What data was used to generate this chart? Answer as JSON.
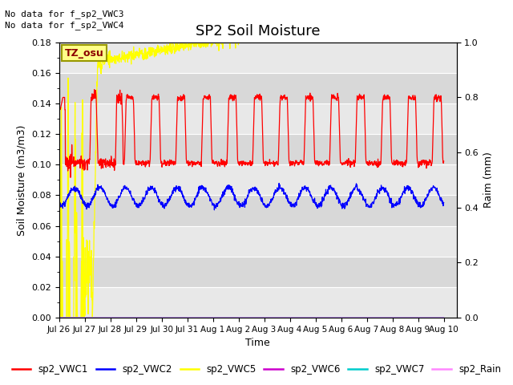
{
  "title": "SP2 Soil Moisture",
  "ylabel_left": "Soil Moisture (m3/m3)",
  "ylabel_right": "Raim (mm)",
  "xlabel": "Time",
  "note1": "No data for f_sp2_VWC3",
  "note2": "No data for f_sp2_VWC4",
  "tz_label": "TZ_osu",
  "ylim_left": [
    0.0,
    0.18
  ],
  "ylim_right": [
    0.0,
    1.0
  ],
  "background_color": "#ffffff",
  "plot_bg_color": "#d8d8d8",
  "stripe_color": "#e8e8e8",
  "tick_dates": [
    "Jul 26",
    "Jul 27",
    "Jul 28",
    "Jul 29",
    "Jul 30",
    "Jul 31",
    "Aug 1",
    "Aug 2",
    "Aug 3",
    "Aug 4",
    "Aug 5",
    "Aug 6",
    "Aug 7",
    "Aug 8",
    "Aug 9",
    "Aug 10"
  ],
  "tick_positions": [
    0,
    1,
    2,
    3,
    4,
    5,
    6,
    7,
    8,
    9,
    10,
    11,
    12,
    13,
    14,
    15
  ],
  "vwc1_color": "#ff0000",
  "vwc2_color": "#0000ff",
  "vwc5_color": "#ffff00",
  "vwc6_color": "#cc00cc",
  "vwc7_color": "#00cccc",
  "rain_color": "#ff88ff",
  "vwc1_base": 0.101,
  "vwc1_peak": 0.144,
  "vwc2_base": 0.079,
  "vwc5_steady": 0.172,
  "xlim": [
    0,
    15.5
  ]
}
